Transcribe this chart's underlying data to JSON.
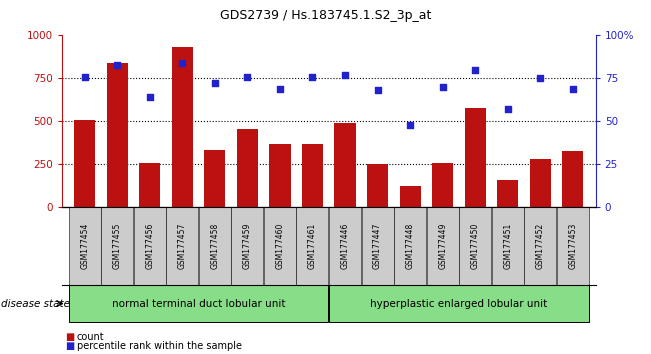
{
  "title": "GDS2739 / Hs.183745.1.S2_3p_at",
  "samples": [
    "GSM177454",
    "GSM177455",
    "GSM177456",
    "GSM177457",
    "GSM177458",
    "GSM177459",
    "GSM177460",
    "GSM177461",
    "GSM177446",
    "GSM177447",
    "GSM177448",
    "GSM177449",
    "GSM177450",
    "GSM177451",
    "GSM177452",
    "GSM177453"
  ],
  "counts": [
    510,
    840,
    255,
    935,
    335,
    455,
    370,
    370,
    490,
    250,
    120,
    255,
    575,
    155,
    280,
    325
  ],
  "percentiles": [
    76,
    83,
    64,
    84,
    72,
    76,
    69,
    76,
    77,
    68,
    48,
    70,
    80,
    57,
    75,
    69
  ],
  "group1_label": "normal terminal duct lobular unit",
  "group2_label": "hyperplastic enlarged lobular unit",
  "group1_count": 8,
  "group2_count": 8,
  "bar_color": "#bb1111",
  "dot_color": "#2222cc",
  "group_bg": "#88dd88",
  "xticklabel_bg": "#cccccc",
  "ylim_left": [
    0,
    1000
  ],
  "ylim_right": [
    0,
    100
  ],
  "yticks_left": [
    0,
    250,
    500,
    750,
    1000
  ],
  "ytick_labels_left": [
    "0",
    "250",
    "500",
    "750",
    "1000"
  ],
  "yticks_right": [
    0,
    25,
    50,
    75,
    100
  ],
  "ytick_labels_right": [
    "0",
    "25",
    "50",
    "75",
    "100%"
  ],
  "legend_count_label": "count",
  "legend_pct_label": "percentile rank within the sample",
  "disease_state_label": "disease state"
}
